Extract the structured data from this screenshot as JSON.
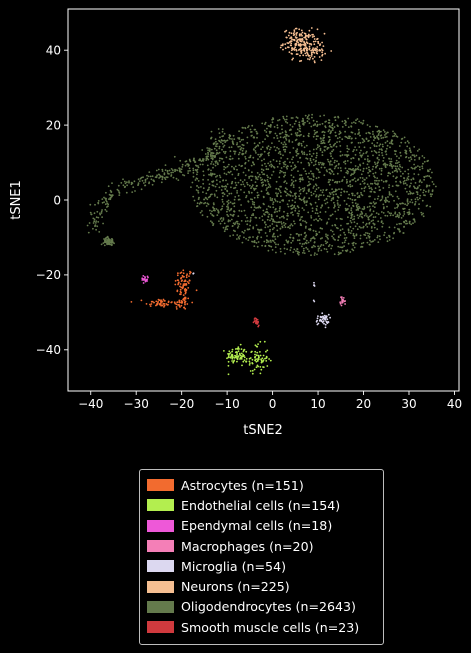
{
  "chart_data": {
    "type": "scatter",
    "title": "",
    "xlabel": "tSNE2",
    "ylabel": "tSNE1",
    "xlim": [
      -45,
      41
    ],
    "ylim": [
      -51,
      51
    ],
    "xticks": [
      -40,
      -30,
      -20,
      -10,
      0,
      10,
      20,
      30,
      40
    ],
    "yticks": [
      -40,
      -20,
      0,
      20,
      40
    ],
    "xtick_labels": [
      "−40",
      "−30",
      "−20",
      "−10",
      "0",
      "10",
      "20",
      "30",
      "40"
    ],
    "ytick_labels": [
      "−40",
      "−20",
      "0",
      "20",
      "40"
    ],
    "grid": false,
    "legend_position": "below",
    "series": [
      {
        "name": "Astrocytes (n=151)",
        "color": "#f26b2f",
        "n": 151,
        "clusters": [
          {
            "cx": -19.5,
            "cy": -22.5,
            "sx": 1.0,
            "sy": 2.2,
            "w": 0.45
          },
          {
            "cx": -25.0,
            "cy": -27.5,
            "sx": 1.5,
            "sy": 0.6,
            "w": 0.3
          },
          {
            "cx": -20.0,
            "cy": -27.5,
            "sx": 1.0,
            "sy": 0.9,
            "w": 0.25
          }
        ]
      },
      {
        "name": "Endothelial cells (n=154)",
        "color": "#b3ee4f",
        "n": 154,
        "clusters": [
          {
            "cx": -8.0,
            "cy": -41.5,
            "sx": 1.1,
            "sy": 1.2,
            "w": 0.5
          },
          {
            "cx": -3.5,
            "cy": -42.5,
            "sx": 1.3,
            "sy": 2.0,
            "w": 0.5
          }
        ]
      },
      {
        "name": "Ependymal cells (n=18)",
        "color": "#ee58d8",
        "n": 18,
        "clusters": [
          {
            "cx": -28.0,
            "cy": -21.0,
            "sx": 0.5,
            "sy": 0.5,
            "w": 1.0
          }
        ]
      },
      {
        "name": "Macrophages (n=20)",
        "color": "#f47fb7",
        "n": 20,
        "clusters": [
          {
            "cx": 15.5,
            "cy": -27.0,
            "sx": 0.3,
            "sy": 0.6,
            "w": 1.0
          }
        ]
      },
      {
        "name": "Microglia (n=54)",
        "color": "#dcd8f0",
        "n": 54,
        "clusters": [
          {
            "cx": 11.0,
            "cy": -32.0,
            "sx": 0.7,
            "sy": 0.7,
            "w": 0.85
          },
          {
            "cx": 9.0,
            "cy": -22.5,
            "sx": 0.2,
            "sy": 0.3,
            "w": 0.07
          },
          {
            "cx": 9.0,
            "cy": -27.0,
            "sx": 0.2,
            "sy": 0.2,
            "w": 0.04
          },
          {
            "cx": -17.5,
            "cy": -19.5,
            "sx": 0.2,
            "sy": 0.2,
            "w": 0.04
          }
        ]
      },
      {
        "name": "Neurons (n=225)",
        "color": "#f6bf92",
        "n": 225,
        "clusters": [
          {
            "cx": 6.0,
            "cy": 42.0,
            "sx": 1.8,
            "sy": 1.8,
            "w": 0.7
          },
          {
            "cx": 9.0,
            "cy": 40.0,
            "sx": 1.3,
            "sy": 1.5,
            "w": 0.3
          }
        ]
      },
      {
        "name": "Oligodendrocytes (n=2643)",
        "color": "#647a4c",
        "n": 2643,
        "clusters": [
          {
            "cx": 9.0,
            "cy": 4.0,
            "rx": 27.0,
            "ry": 19.0,
            "uniform": true,
            "w": 0.88
          },
          {
            "arc": [
              [
                -39,
                -7
              ],
              [
                -38.5,
                -2
              ],
              [
                -34,
                3
              ],
              [
                -27,
                6
              ],
              [
                -20,
                8
              ],
              [
                -14,
                11
              ],
              [
                -11,
                18
              ]
            ],
            "spread": 1.1,
            "w": 0.1
          },
          {
            "cx": -36.0,
            "cy": -11.0,
            "sx": 0.6,
            "sy": 0.5,
            "w": 0.02
          }
        ]
      },
      {
        "name": "Smooth muscle cells (n=23)",
        "color": "#d03a3e",
        "n": 23,
        "clusters": [
          {
            "cx": -3.5,
            "cy": -32.5,
            "sx": 0.3,
            "sy": 0.5,
            "w": 1.0
          }
        ]
      }
    ]
  }
}
